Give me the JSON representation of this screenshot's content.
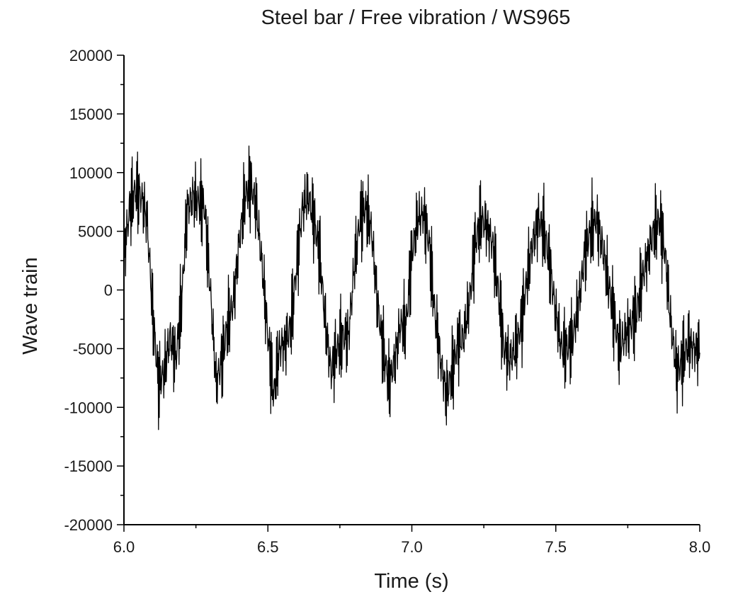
{
  "chart_data": {
    "type": "line",
    "title": "Steel bar / Free vibration / WS965",
    "xlabel": "Time (s)",
    "ylabel": "Wave train",
    "xlim": [
      6.0,
      8.0
    ],
    "ylim": [
      -20000,
      20000
    ],
    "x_ticks": [
      6.0,
      6.5,
      7.0,
      7.5,
      8.0
    ],
    "x_tick_labels": [
      "6.0",
      "6.5",
      "7.0",
      "7.5",
      "8.0"
    ],
    "y_ticks": [
      -20000,
      -15000,
      -10000,
      -5000,
      0,
      5000,
      10000,
      15000,
      20000
    ],
    "y_tick_labels": [
      "-20000",
      "-15000",
      "-10000",
      "-5000",
      "0",
      "5000",
      "10000",
      "15000",
      "20000"
    ],
    "grid": false,
    "legend": "none",
    "line_color": "#000000",
    "series": [
      {
        "x": [
          6.0,
          6.02,
          6.04,
          6.06,
          6.08,
          6.1,
          6.12,
          6.14,
          6.16,
          6.18,
          6.2,
          6.22,
          6.24,
          6.26,
          6.28,
          6.3,
          6.32,
          6.34,
          6.36,
          6.38,
          6.4,
          6.42,
          6.44,
          6.46,
          6.48,
          6.5,
          6.52,
          6.54,
          6.56,
          6.58,
          6.6,
          6.62,
          6.64,
          6.66,
          6.68,
          6.7,
          6.72,
          6.74,
          6.76,
          6.78,
          6.8,
          6.82,
          6.84,
          6.86,
          6.88,
          6.9,
          6.92,
          6.94,
          6.96,
          6.98,
          7.0,
          7.02,
          7.04,
          7.06,
          7.08,
          7.1,
          7.12,
          7.14,
          7.16,
          7.18,
          7.2,
          7.22,
          7.24,
          7.26,
          7.28,
          7.3,
          7.32,
          7.34,
          7.36,
          7.38,
          7.4,
          7.42,
          7.44,
          7.46,
          7.48,
          7.5,
          7.52,
          7.54,
          7.56,
          7.58,
          7.6,
          7.62,
          7.64,
          7.66,
          7.68,
          7.7,
          7.72,
          7.74,
          7.76,
          7.78,
          7.8,
          7.82,
          7.84,
          7.86,
          7.88,
          7.9,
          7.92,
          7.94,
          7.96,
          7.98,
          8.0
        ],
        "y": [
          3000,
          7000,
          8500,
          8000,
          6000,
          -2000,
          -8000,
          -7000,
          -4000,
          -6000,
          -1000,
          7000,
          8000,
          7500,
          7000,
          0,
          -8000,
          -6000,
          -3000,
          -1000,
          4000,
          8000,
          9000,
          7000,
          2000,
          -4000,
          -9000,
          -5000,
          -4500,
          -3000,
          2000,
          7000,
          8000,
          6000,
          3000,
          -3000,
          -7000,
          -5000,
          -4000,
          -4000,
          2000,
          6000,
          7000,
          5000,
          -1000,
          -5000,
          -8000,
          -6000,
          -3000,
          -3000,
          3000,
          6000,
          6500,
          4000,
          -2000,
          -6000,
          -9000,
          -7000,
          -4500,
          -4000,
          -1000,
          4000,
          6000,
          5500,
          4000,
          0,
          -5000,
          -6000,
          -5000,
          -3000,
          1000,
          4000,
          6000,
          5000,
          2000,
          -2000,
          -5000,
          -5000,
          -4000,
          -1000,
          3000,
          5000,
          6000,
          4000,
          1000,
          -2000,
          -5000,
          -4000,
          -3000,
          -2000,
          1000,
          3000,
          5000,
          6000,
          3000,
          -3000,
          -7000,
          -6000,
          -4500,
          -5000,
          -5000
        ]
      }
    ]
  }
}
